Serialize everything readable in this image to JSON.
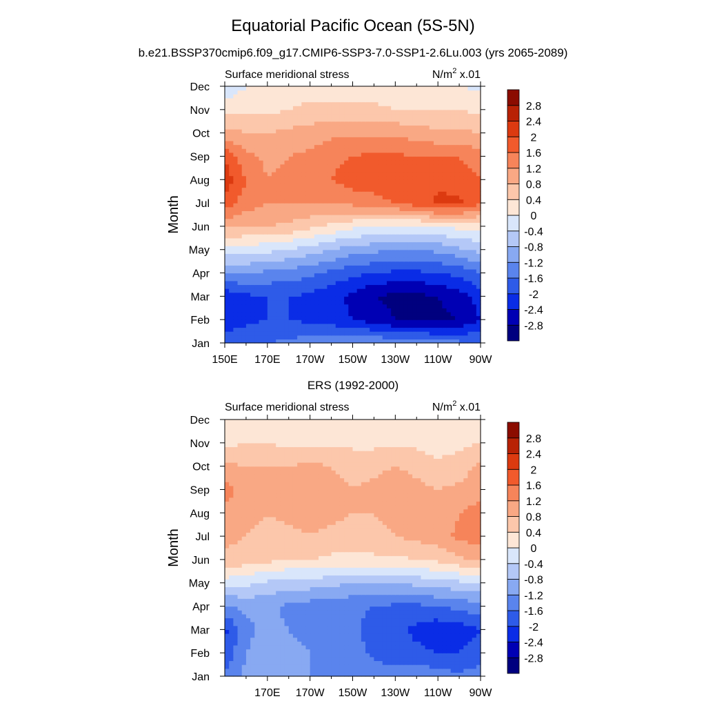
{
  "figure": {
    "title": "Equatorial Pacific Ocean (5S-5N)",
    "case_name": "b.e21.BSSP370cmip6.f09_g17.CMIP6-SSP3-7.0-SSP1-2.6Lu.003 (yrs 2065-2089)",
    "obs_title": "ERS (1992-2000)"
  },
  "colors": {
    "levels_palette": [
      "#00007f",
      "#0000b4",
      "#0a2ce6",
      "#2e5be8",
      "#5a84ed",
      "#88a9f2",
      "#b4c8f7",
      "#d9e6fb",
      "#fde6d6",
      "#fcc7ab",
      "#f9a884",
      "#f6845a",
      "#f15a2c",
      "#dc3a10",
      "#b82205",
      "#8b0c00"
    ]
  },
  "chart_data": [
    {
      "type": "heatmap",
      "panel": "model",
      "left_label": "Surface meridional stress",
      "units_label": "N/m",
      "units_superscript": "2",
      "units_suffix": " x.01",
      "ylabel": "Month",
      "y_ticks": [
        "Jan",
        "Feb",
        "Mar",
        "Apr",
        "May",
        "Jun",
        "Jul",
        "Aug",
        "Sep",
        "Oct",
        "Nov",
        "Dec"
      ],
      "x_ticks": [
        "150E",
        "170E",
        "170W",
        "150W",
        "130W",
        "110W",
        "90W"
      ],
      "x_range": [
        150,
        270
      ],
      "colorbar_labels": [
        "-2.8",
        "-2.4",
        "-2",
        "-1.6",
        "-1.2",
        "-0.8",
        "-0.4",
        "0",
        "0.4",
        "0.8",
        "1.2",
        "1.6",
        "2",
        "2.4",
        "2.8"
      ],
      "lons": [
        150,
        160,
        170,
        180,
        190,
        200,
        210,
        220,
        230,
        240,
        250,
        260,
        270
      ],
      "months": [
        "Jan",
        "Feb",
        "Mar",
        "Apr",
        "May",
        "Jun",
        "Jul",
        "Aug",
        "Sep",
        "Oct",
        "Nov",
        "Dec"
      ],
      "values": [
        [
          -1.7,
          -1.7,
          -1.6,
          -1.5,
          -1.4,
          -1.3,
          -1.3,
          -1.2,
          -1.3,
          -1.3,
          -1.4,
          -1.5,
          -1.6
        ],
        [
          -2.3,
          -2.1,
          -2.0,
          -2.0,
          -2.1,
          -2.2,
          -2.4,
          -2.6,
          -2.8,
          -2.9,
          -2.9,
          -2.8,
          -2.4
        ],
        [
          -2.3,
          -2.1,
          -2.0,
          -2.0,
          -2.1,
          -2.3,
          -2.5,
          -2.8,
          -2.9,
          -2.9,
          -2.8,
          -2.6,
          -2.2
        ],
        [
          -1.2,
          -1.2,
          -1.3,
          -1.4,
          -1.5,
          -1.7,
          -1.9,
          -2.0,
          -2.1,
          -2.1,
          -2.0,
          -1.9,
          -1.6
        ],
        [
          -0.2,
          -0.2,
          -0.3,
          -0.4,
          -0.6,
          -0.8,
          -1.0,
          -1.1,
          -1.2,
          -1.2,
          -1.1,
          -0.9,
          -0.7
        ],
        [
          0.9,
          0.8,
          0.8,
          0.7,
          0.5,
          0.3,
          0.1,
          0.0,
          -0.1,
          -0.1,
          0.0,
          0.1,
          0.2
        ],
        [
          1.8,
          1.4,
          1.2,
          1.2,
          1.2,
          1.2,
          1.3,
          1.4,
          1.6,
          1.8,
          2.1,
          2.1,
          1.6
        ],
        [
          2.3,
          1.6,
          1.2,
          1.3,
          1.4,
          1.6,
          1.8,
          1.9,
          1.9,
          1.8,
          1.9,
          1.8,
          1.6
        ],
        [
          1.9,
          1.3,
          1.1,
          1.2,
          1.3,
          1.5,
          1.6,
          1.7,
          1.7,
          1.6,
          1.6,
          1.6,
          1.4
        ],
        [
          1.0,
          0.8,
          0.8,
          0.9,
          1.0,
          1.1,
          1.1,
          1.1,
          1.1,
          1.0,
          0.9,
          0.9,
          0.8
        ],
        [
          0.2,
          0.3,
          0.3,
          0.4,
          0.5,
          0.5,
          0.5,
          0.5,
          0.4,
          0.4,
          0.4,
          0.4,
          0.3
        ],
        [
          -0.3,
          0.0,
          0.1,
          0.2,
          0.2,
          0.2,
          0.2,
          0.2,
          0.1,
          0.1,
          0.1,
          0.0,
          -0.1
        ]
      ]
    },
    {
      "type": "heatmap",
      "panel": "obs",
      "left_label": "Surface meridional stress",
      "units_label": "N/m",
      "units_superscript": "2",
      "units_suffix": " x.01",
      "ylabel": "Month",
      "y_ticks": [
        "Jan",
        "Feb",
        "Mar",
        "Apr",
        "May",
        "Jun",
        "Jul",
        "Aug",
        "Sep",
        "Oct",
        "Nov",
        "Dec"
      ],
      "x_ticks": [
        "170E",
        "170W",
        "150W",
        "130W",
        "110W",
        "90W"
      ],
      "x_range": [
        150,
        270
      ],
      "colorbar_labels": [
        "-2.8",
        "-2.4",
        "-2",
        "-1.6",
        "-1.2",
        "-0.8",
        "-0.4",
        "0",
        "0.4",
        "0.8",
        "1.2",
        "1.6",
        "2",
        "2.4",
        "2.8"
      ],
      "lons": [
        150,
        160,
        170,
        180,
        190,
        200,
        210,
        220,
        230,
        240,
        250,
        260,
        270
      ],
      "months": [
        "Jan",
        "Feb",
        "Mar",
        "Apr",
        "May",
        "Jun",
        "Jul",
        "Aug",
        "Sep",
        "Oct",
        "Nov",
        "Dec"
      ],
      "values": [
        [
          -1.5,
          -1.1,
          -0.9,
          -1.0,
          -1.2,
          -1.2,
          -1.3,
          -1.4,
          -1.4,
          -1.3,
          -1.4,
          -1.5,
          -1.4
        ],
        [
          -1.9,
          -1.2,
          -1.0,
          -1.1,
          -1.2,
          -1.3,
          -1.4,
          -1.7,
          -1.8,
          -1.9,
          -2.0,
          -2.0,
          -1.8
        ],
        [
          -2.1,
          -1.3,
          -1.1,
          -1.2,
          -1.3,
          -1.4,
          -1.5,
          -1.8,
          -1.9,
          -2.1,
          -2.3,
          -2.2,
          -2.0
        ],
        [
          -1.3,
          -1.1,
          -1.1,
          -1.3,
          -1.4,
          -1.5,
          -1.5,
          -1.6,
          -1.7,
          -1.7,
          -1.6,
          -1.5,
          -1.3
        ],
        [
          -0.2,
          -0.3,
          -0.5,
          -0.6,
          -0.6,
          -0.7,
          -0.8,
          -0.8,
          -0.8,
          -0.7,
          -0.6,
          -0.5,
          -0.5
        ],
        [
          0.7,
          0.6,
          0.5,
          0.4,
          0.4,
          0.3,
          0.3,
          0.3,
          0.3,
          0.4,
          0.5,
          0.7,
          0.9
        ],
        [
          0.9,
          0.8,
          0.7,
          0.7,
          0.8,
          0.7,
          0.6,
          0.7,
          0.8,
          0.9,
          1.0,
          1.3,
          1.4
        ],
        [
          1.1,
          0.9,
          0.8,
          0.9,
          0.9,
          0.9,
          0.8,
          0.8,
          0.9,
          1.0,
          0.9,
          1.2,
          1.4
        ],
        [
          1.4,
          1.0,
          0.9,
          1.0,
          1.0,
          0.9,
          0.8,
          0.9,
          1.0,
          0.9,
          0.8,
          0.9,
          1.0
        ],
        [
          0.9,
          0.8,
          0.8,
          0.8,
          0.9,
          0.8,
          0.7,
          0.7,
          0.8,
          0.7,
          0.5,
          0.6,
          0.9
        ],
        [
          0.3,
          0.4,
          0.4,
          0.3,
          0.3,
          0.3,
          0.3,
          0.3,
          0.3,
          0.3,
          0.2,
          0.3,
          0.4
        ],
        [
          0.0,
          0.1,
          0.1,
          0.0,
          0.0,
          0.1,
          0.0,
          0.1,
          0.0,
          0.0,
          0.0,
          0.1,
          0.1
        ]
      ]
    }
  ]
}
